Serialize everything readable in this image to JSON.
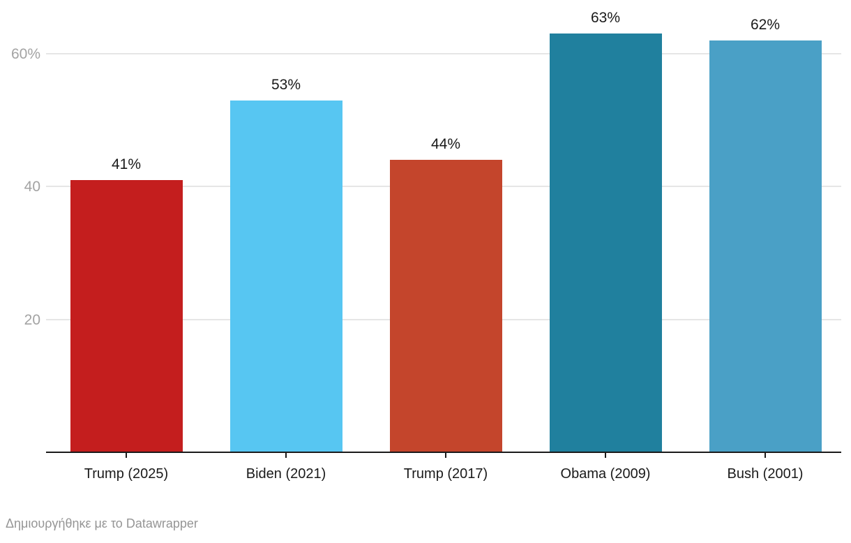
{
  "chart_data": {
    "type": "bar",
    "categories": [
      "Trump (2025)",
      "Biden (2021)",
      "Trump (2017)",
      "Obama (2009)",
      "Bush (2001)"
    ],
    "values": [
      41,
      53,
      44,
      63,
      62
    ],
    "value_labels": [
      "41%",
      "53%",
      "44%",
      "63%",
      "62%"
    ],
    "bar_colors": [
      "#c41e1e",
      "#57c6f2",
      "#c4452c",
      "#20809e",
      "#4aa0c6"
    ],
    "bar_keys": [
      "trump-2025",
      "biden-2021",
      "trump-2017",
      "obama-2009",
      "bush-2001"
    ],
    "yticks": [
      {
        "value": 20,
        "label": "20"
      },
      {
        "value": 40,
        "label": "40"
      },
      {
        "value": 60,
        "label": "60%"
      }
    ],
    "ylim": [
      0,
      68
    ],
    "grid": true,
    "legend": "none",
    "title": "",
    "xlabel": "",
    "ylabel": ""
  },
  "footer": {
    "attribution": "Δημιουργήθηκε με το Datawrapper"
  },
  "colors": {
    "background": "#ffffff",
    "grid": "#e6e6e6",
    "axis": "#1a1a1a",
    "tick": "#1a1a1a",
    "ytick_label": "#a3a3a3",
    "value_label": "#1a1a1a",
    "xtick_label": "#1a1a1a",
    "footer_text": "#959595"
  }
}
